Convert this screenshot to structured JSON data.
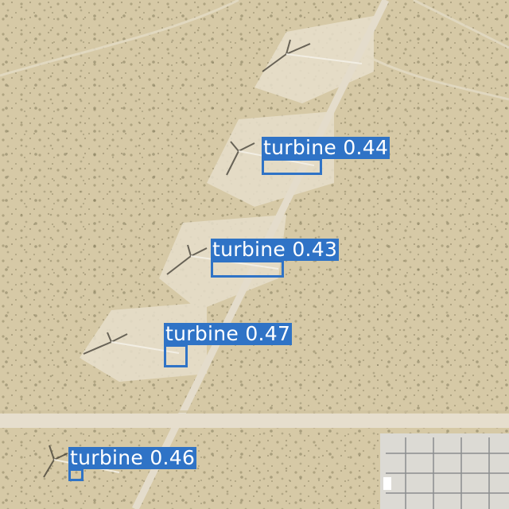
{
  "image": {
    "kind": "aerial-photo",
    "subject": "desert-wind-farm",
    "colors": {
      "sand": "#d6c9a6",
      "shrub": "#8d8463",
      "road": "#e4dccb",
      "pad": "#e7dfcb",
      "box": "#2f73c6",
      "label_text": "#ffffff"
    }
  },
  "detections": [
    {
      "label": "turbine",
      "score": "0.44",
      "text": "turbine 0.44"
    },
    {
      "label": "turbine",
      "score": "0.43",
      "text": "turbine 0.43"
    },
    {
      "label": "turbine",
      "score": "0.47",
      "text": "turbine 0.47"
    },
    {
      "label": "turbine",
      "score": "0.46",
      "text": "turbine 0.46"
    }
  ]
}
